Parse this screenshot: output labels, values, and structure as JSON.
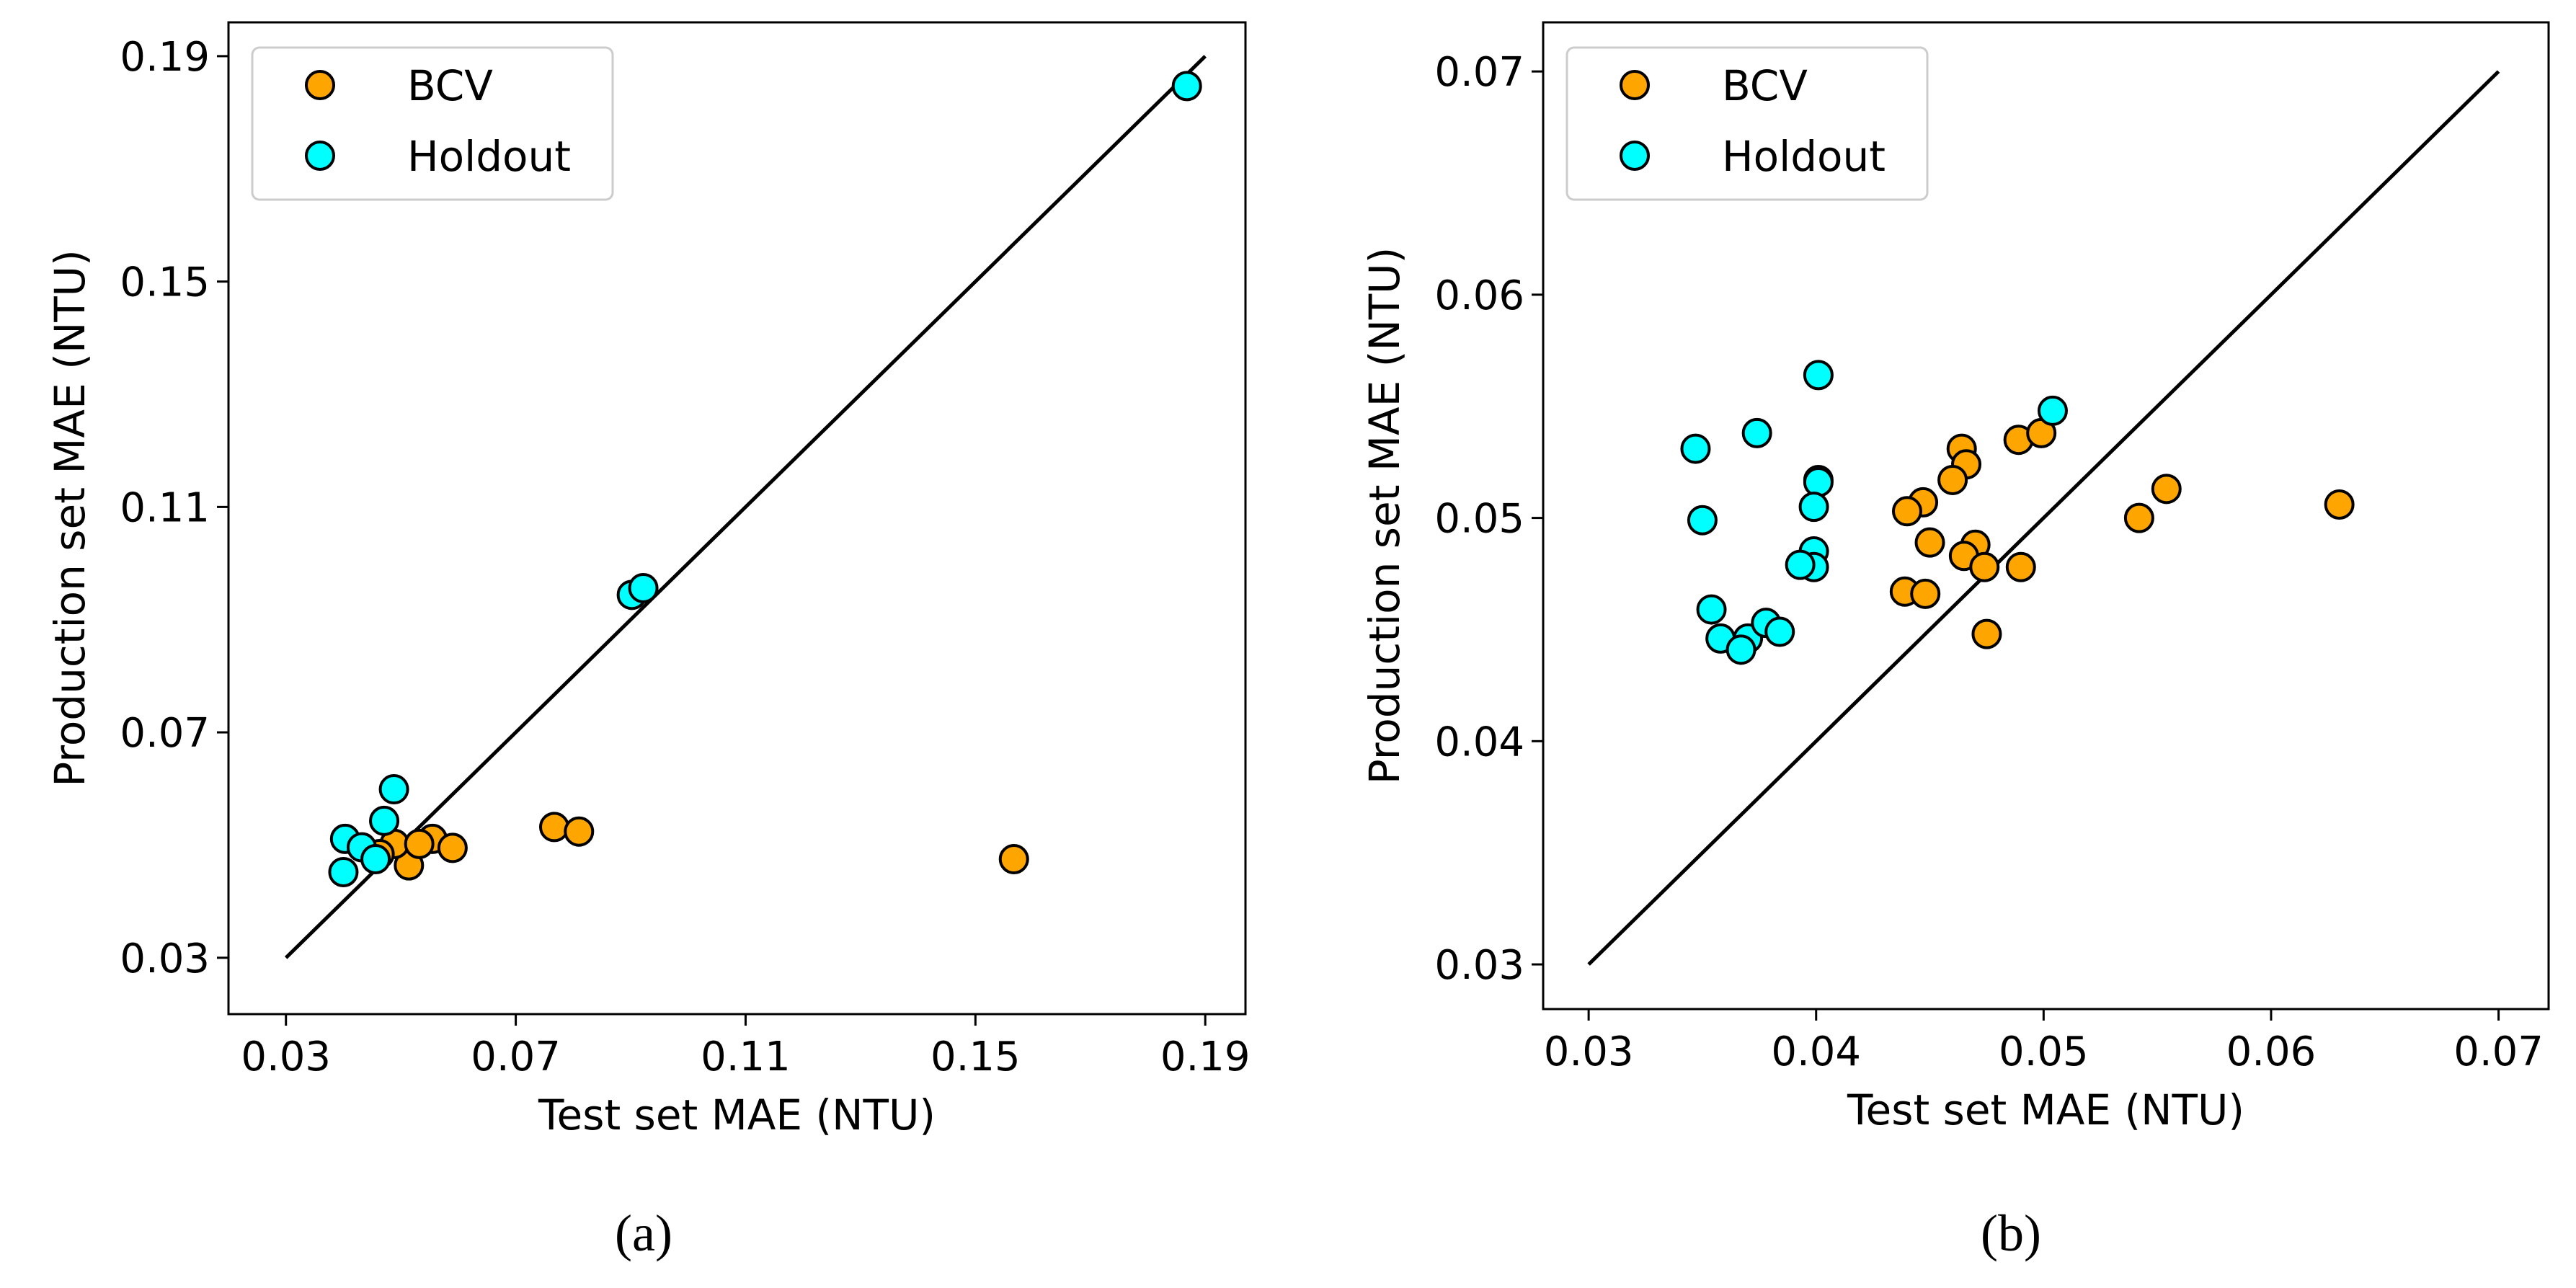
{
  "colors": {
    "BCV": "#FFA500",
    "Holdout": "#00FFFF",
    "edge": "#000000",
    "line": "#000000"
  },
  "chart_data": [
    {
      "type": "scatter",
      "caption": "(a)",
      "xlabel": "Test set MAE (NTU)",
      "ylabel": "Production set MAE (NTU)",
      "xlim": [
        0.02,
        0.197
      ],
      "ylim": [
        0.02,
        0.196
      ],
      "xticks": [
        "0.03",
        "0.07",
        "0.11",
        "0.15",
        "0.19"
      ],
      "yticks": [
        "0.03",
        "0.07",
        "0.11",
        "0.15",
        "0.19"
      ],
      "reference_line": [
        [
          0.03,
          0.03
        ],
        [
          0.19,
          0.19
        ]
      ],
      "legend": {
        "placement": "top-left",
        "entries": [
          "BCV",
          "Holdout"
        ]
      },
      "series": [
        {
          "name": "BCV",
          "points": [
            [
              0.1567,
              0.0475
            ],
            [
              0.0767,
              0.0532
            ],
            [
              0.081,
              0.0524
            ],
            [
              0.0555,
              0.0511
            ],
            [
              0.059,
              0.0495
            ],
            [
              0.0514,
              0.0464
            ],
            [
              0.0489,
              0.0502
            ],
            [
              0.0532,
              0.0502
            ],
            [
              0.0463,
              0.0484
            ]
          ]
        },
        {
          "name": "Holdout",
          "points": [
            [
              0.1868,
              0.1847
            ],
            [
              0.0902,
              0.0944
            ],
            [
              0.0922,
              0.0956
            ],
            [
              0.0488,
              0.0599
            ],
            [
              0.0471,
              0.0543
            ],
            [
              0.0403,
              0.0511
            ],
            [
              0.0432,
              0.0496
            ],
            [
              0.0456,
              0.0475
            ],
            [
              0.04,
              0.0452
            ]
          ]
        }
      ]
    },
    {
      "type": "scatter",
      "caption": "(b)",
      "xlabel": "Test set MAE (NTU)",
      "ylabel": "Production set MAE (NTU)",
      "xlim": [
        0.028,
        0.0722
      ],
      "ylim": [
        0.028,
        0.0722
      ],
      "xticks": [
        "0.03",
        "0.04",
        "0.05",
        "0.06",
        "0.07"
      ],
      "yticks": [
        "0.03",
        "0.04",
        "0.05",
        "0.06",
        "0.07"
      ],
      "reference_line": [
        [
          0.03,
          0.03
        ],
        [
          0.07,
          0.07
        ]
      ],
      "legend": {
        "placement": "top-left",
        "entries": [
          "BCV",
          "Holdout"
        ]
      },
      "series": [
        {
          "name": "BCV",
          "points": [
            [
              0.0489,
              0.0535
            ],
            [
              0.0499,
              0.0538
            ],
            [
              0.0464,
              0.0531
            ],
            [
              0.0466,
              0.0524
            ],
            [
              0.046,
              0.0517
            ],
            [
              0.0447,
              0.0507
            ],
            [
              0.044,
              0.0503
            ],
            [
              0.045,
              0.0489
            ],
            [
              0.047,
              0.0488
            ],
            [
              0.0465,
              0.0483
            ],
            [
              0.0474,
              0.0478
            ],
            [
              0.049,
              0.0478
            ],
            [
              0.0439,
              0.0467
            ],
            [
              0.0448,
              0.0466
            ],
            [
              0.0475,
              0.0448
            ],
            [
              0.0542,
              0.05
            ],
            [
              0.0554,
              0.0513
            ],
            [
              0.063,
              0.0506
            ]
          ]
        },
        {
          "name": "Holdout",
          "points": [
            [
              0.0347,
              0.0531
            ],
            [
              0.0374,
              0.0538
            ],
            [
              0.0401,
              0.0564
            ],
            [
              0.0401,
              0.0517
            ],
            [
              0.0401,
              0.0516
            ],
            [
              0.0399,
              0.0505
            ],
            [
              0.035,
              0.0499
            ],
            [
              0.0399,
              0.0485
            ],
            [
              0.0399,
              0.0478
            ],
            [
              0.0393,
              0.0479
            ],
            [
              0.0354,
              0.0459
            ],
            [
              0.0358,
              0.0446
            ],
            [
              0.037,
              0.0446
            ],
            [
              0.0367,
              0.0441
            ],
            [
              0.0378,
              0.0453
            ],
            [
              0.0384,
              0.0449
            ],
            [
              0.0504,
              0.0548
            ]
          ]
        }
      ]
    }
  ]
}
